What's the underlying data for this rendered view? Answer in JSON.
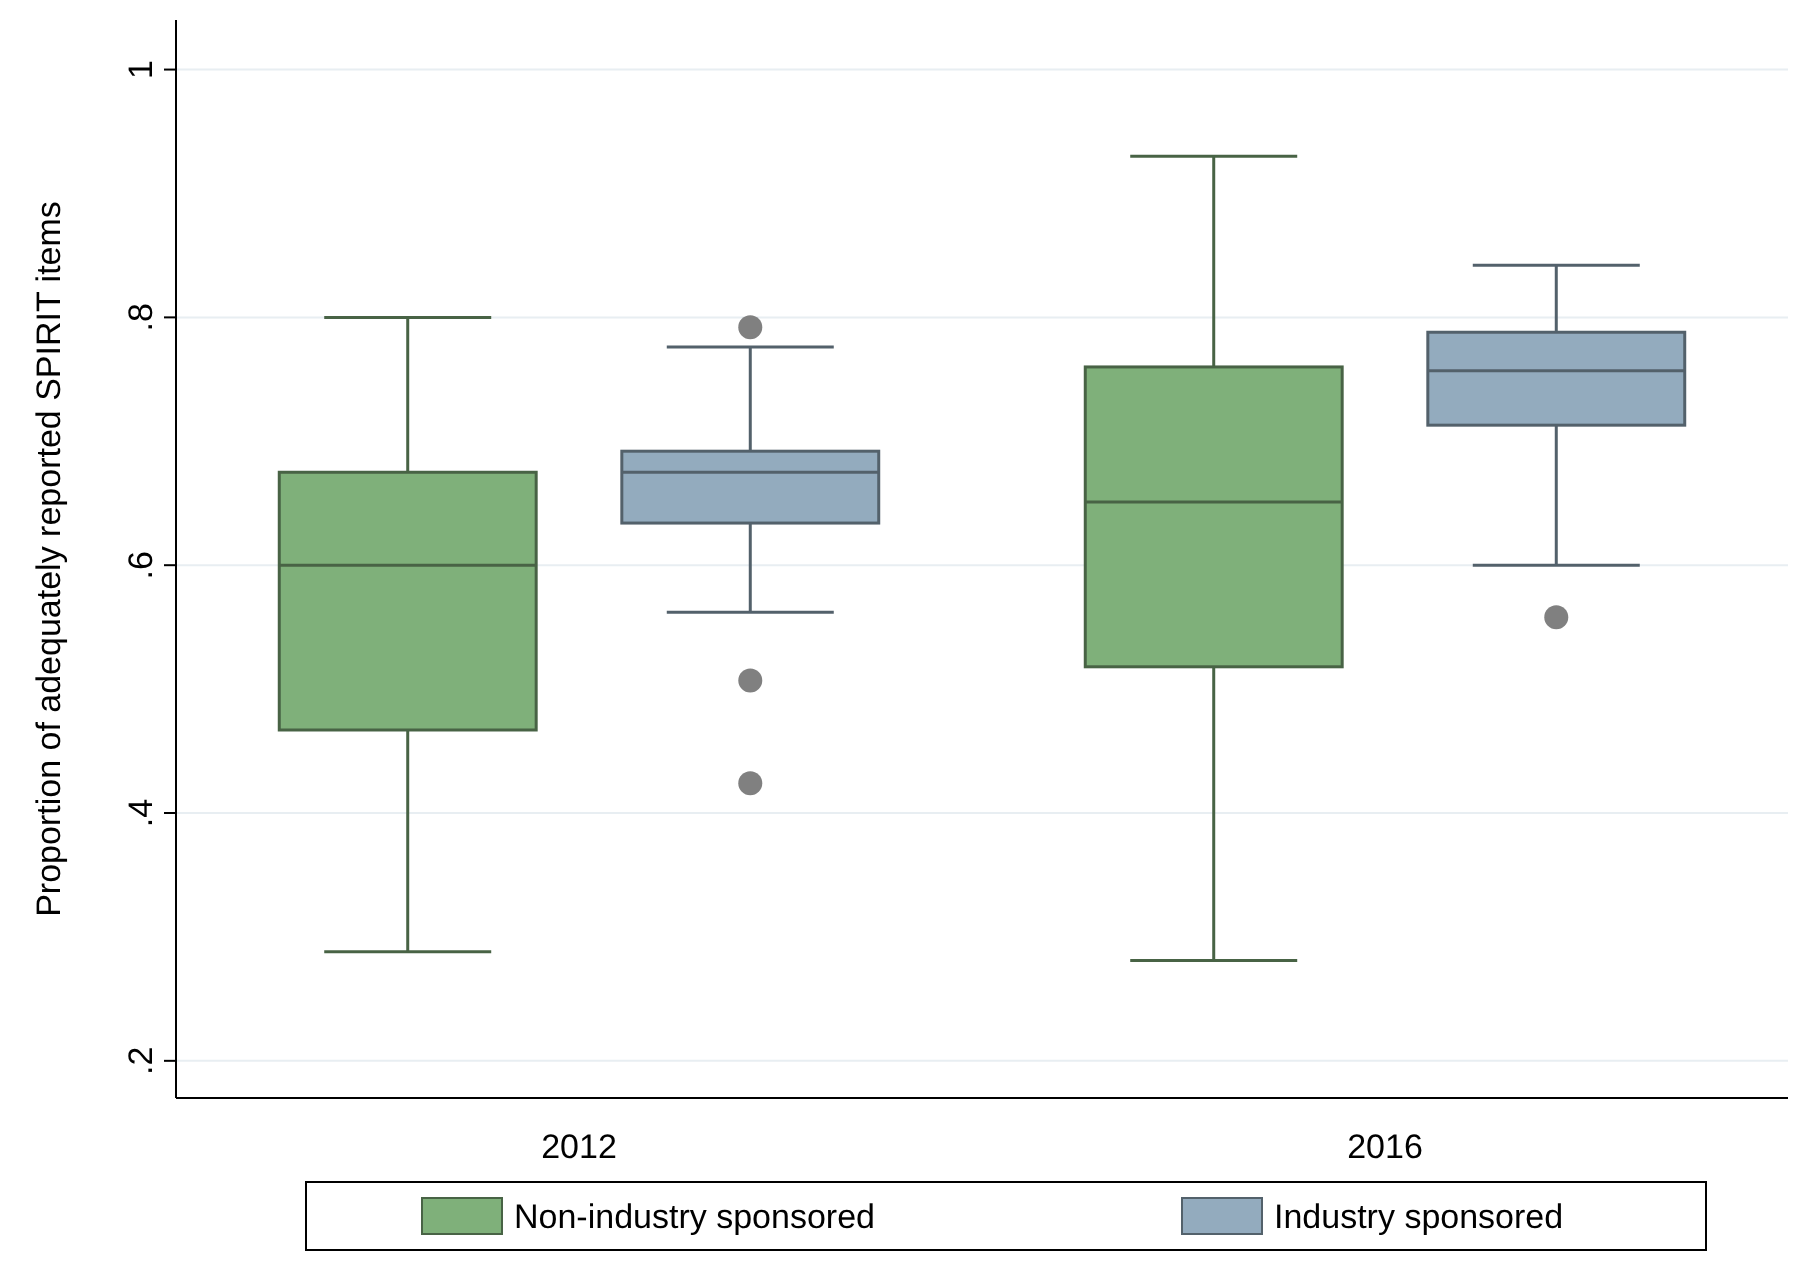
{
  "chart_data": {
    "type": "box",
    "ylabel": "Proportion of adequately reported SPIRIT items",
    "categories": [
      "2012",
      "2016"
    ],
    "series": [
      {
        "name": "Non-industry sponsored",
        "color": "#7fb07a",
        "boxes": [
          {
            "low": 0.288,
            "q1": 0.467,
            "median": 0.6,
            "q3": 0.675,
            "high": 0.8
          },
          {
            "low": 0.281,
            "q1": 0.518,
            "median": 0.651,
            "q3": 0.76,
            "high": 0.93
          }
        ]
      },
      {
        "name": "Industry sponsored",
        "color": "#93abbe",
        "boxes": [
          {
            "low": 0.562,
            "q1": 0.634,
            "median": 0.675,
            "q3": 0.692,
            "high": 0.776,
            "outliers": [
              0.792,
              0.507,
              0.424
            ]
          },
          {
            "low": 0.6,
            "q1": 0.713,
            "median": 0.757,
            "q3": 0.788,
            "high": 0.842,
            "outliers": [
              0.558
            ]
          }
        ]
      }
    ],
    "ylim": [
      0.17,
      1.04
    ],
    "yticks": [
      {
        "value": 0.2,
        "label": ".2"
      },
      {
        "value": 0.4,
        "label": ".4"
      },
      {
        "value": 0.6,
        "label": ".6"
      },
      {
        "value": 0.8,
        "label": ".8"
      },
      {
        "value": 1,
        "label": "1"
      }
    ],
    "grid": "y",
    "legend": "bottom"
  }
}
